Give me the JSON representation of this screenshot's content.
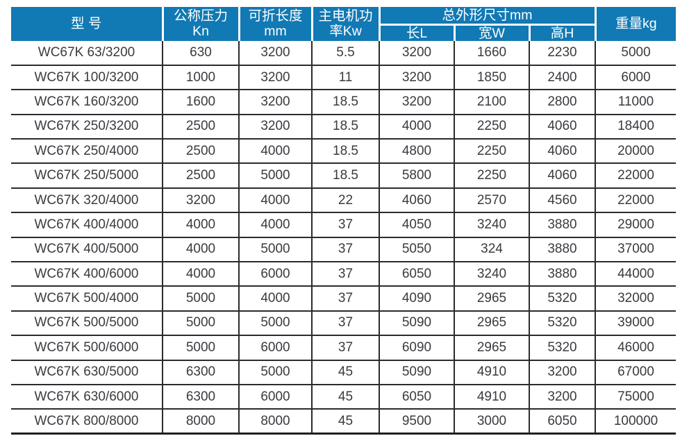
{
  "colors": {
    "header_bg": "#1179b4",
    "header_text": "#ffffff",
    "body_text": "#3a3a40",
    "grid_line": "#2b2b2e"
  },
  "chart_data": {
    "type": "table",
    "header": {
      "model": "型 号",
      "pressure_lines": [
        "公称压力",
        "Kn"
      ],
      "fold_length_lines": [
        "可折长度",
        "mm"
      ],
      "motor_power_lines": [
        "主电机功",
        "率Kw"
      ],
      "dimensions_group": "总外形尺寸mm",
      "dim_subheaders": [
        "长L",
        "宽W",
        "高H"
      ],
      "weight": "重量kg"
    },
    "column_keys": [
      "model",
      "pressure_kn",
      "fold_length_mm",
      "motor_power_kw",
      "dim_length_l",
      "dim_width_w",
      "dim_height_h",
      "weight_kg"
    ],
    "rows": [
      [
        "WC67K 63/3200",
        "630",
        "3200",
        "5.5",
        "3200",
        "1660",
        "2230",
        "5000"
      ],
      [
        "WC67K 100/3200",
        "1000",
        "3200",
        "11",
        "3200",
        "1850",
        "2400",
        "6000"
      ],
      [
        "WC67K 160/3200",
        "1600",
        "3200",
        "18.5",
        "3200",
        "2100",
        "2800",
        "11000"
      ],
      [
        "WC67K 250/3200",
        "2500",
        "3200",
        "18.5",
        "4000",
        "2250",
        "4060",
        "18400"
      ],
      [
        "WC67K 250/4000",
        "2500",
        "4000",
        "18.5",
        "4800",
        "2250",
        "4060",
        "20000"
      ],
      [
        "WC67K 250/5000",
        "2500",
        "5000",
        "18.5",
        "5800",
        "2250",
        "4060",
        "22000"
      ],
      [
        "WC67K 320/4000",
        "3200",
        "4000",
        "22",
        "4060",
        "2570",
        "4560",
        "22000"
      ],
      [
        "WC67K 400/4000",
        "4000",
        "4000",
        "37",
        "4050",
        "3240",
        "3880",
        "29000"
      ],
      [
        "WC67K 400/5000",
        "4000",
        "5000",
        "37",
        "5050",
        "324",
        "3880",
        "37000"
      ],
      [
        "WC67K 400/6000",
        "4000",
        "6000",
        "37",
        "6050",
        "3240",
        "3880",
        "44000"
      ],
      [
        "WC67K 500/4000",
        "5000",
        "4000",
        "37",
        "4090",
        "2965",
        "5320",
        "32000"
      ],
      [
        "WC67K 500/5000",
        "5000",
        "5000",
        "37",
        "5090",
        "2965",
        "5320",
        "39000"
      ],
      [
        "WC67K 500/6000",
        "5000",
        "6000",
        "37",
        "6090",
        "2965",
        "5320",
        "46000"
      ],
      [
        "WC67K 630/5000",
        "6300",
        "5000",
        "45",
        "5090",
        "4910",
        "3200",
        "67000"
      ],
      [
        "WC67K 630/6000",
        "6300",
        "6000",
        "45",
        "6050",
        "4910",
        "3200",
        "75000"
      ],
      [
        "WC67K 800/8000",
        "8000",
        "8000",
        "45",
        "9500",
        "3000",
        "6050",
        "100000"
      ]
    ]
  }
}
